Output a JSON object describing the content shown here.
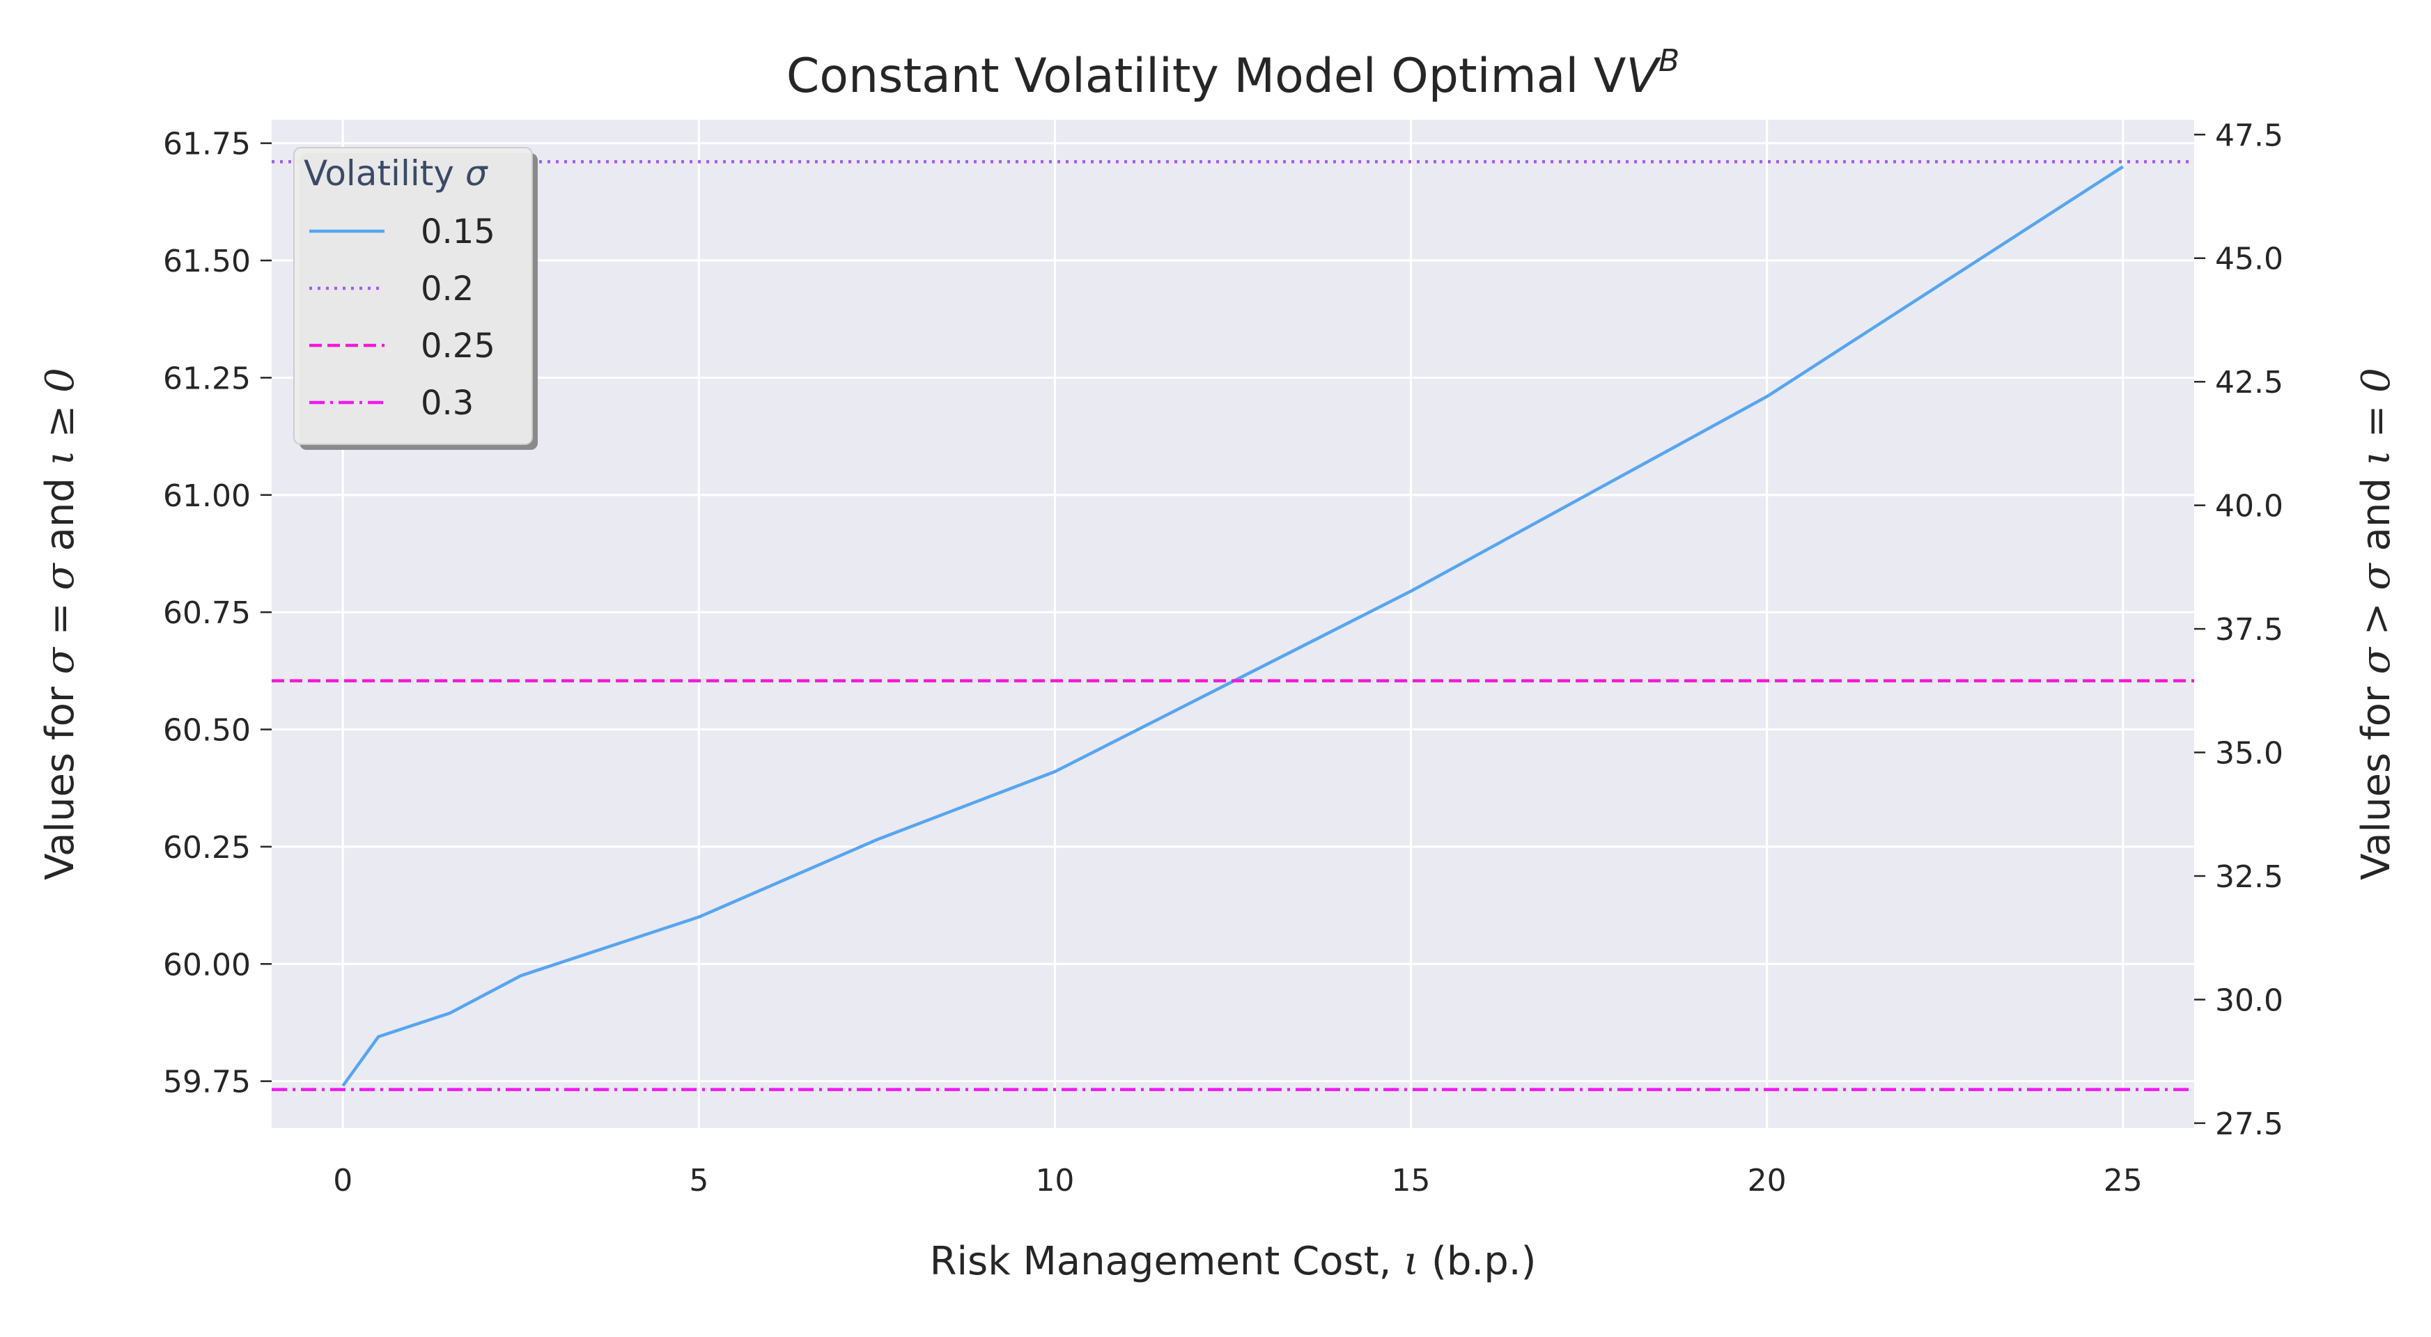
{
  "chart_data": {
    "type": "line",
    "title": "Constant Volatility Model Optimal V",
    "title_superscript": "B",
    "xlabel_prefix": "Risk Management Cost, ",
    "xlabel_symbol": "ι",
    "xlabel_suffix": " (b.p.)",
    "ylabel_left": {
      "t1": "Values for ",
      "t2": "σ = σ",
      "t3": " and ",
      "t4": "ι ≥ 0"
    },
    "ylabel_right": {
      "t1": "Values for ",
      "t2": "σ > σ",
      "t3": " and ",
      "t4": "ι = 0"
    },
    "xlim": [
      -1,
      26
    ],
    "ylim_left": [
      59.65,
      61.8
    ],
    "ylim_right": [
      27.4,
      47.8
    ],
    "xticks": [
      0,
      5,
      10,
      15,
      20,
      25
    ],
    "yticks_left": [
      "59.75",
      "60.00",
      "60.25",
      "60.50",
      "60.75",
      "61.00",
      "61.25",
      "61.50",
      "61.75"
    ],
    "yticks_right": [
      "27.5",
      "30.0",
      "32.5",
      "35.0",
      "37.5",
      "40.0",
      "42.5",
      "45.0",
      "47.5"
    ],
    "grid": true,
    "legend_position": "top-left",
    "legend_title_prefix": "Volatility ",
    "legend_title_symbol": "σ",
    "series": [
      {
        "name": "0.15",
        "axis": "left",
        "color": "#56a5f0",
        "dash": "solid",
        "x": [
          0,
          0.5,
          1.5,
          2.5,
          5,
          7.5,
          10,
          15,
          20,
          25
        ],
        "y": [
          59.74,
          59.845,
          59.895,
          59.975,
          60.1,
          60.265,
          60.41,
          60.795,
          61.21,
          61.7
        ]
      },
      {
        "name": "0.2",
        "axis": "right",
        "color": "#a559f0",
        "dash": "dotted",
        "x": [
          -1,
          26
        ],
        "y": [
          46.95,
          46.95
        ]
      },
      {
        "name": "0.25",
        "axis": "right",
        "color": "#f01ad5",
        "dash": "dashed",
        "x": [
          -1,
          26
        ],
        "y": [
          36.45,
          36.45
        ]
      },
      {
        "name": "0.3",
        "axis": "right",
        "color": "#f01af0",
        "dash": "dashdot",
        "x": [
          -1,
          26
        ],
        "y": [
          28.18,
          28.18
        ]
      }
    ]
  }
}
